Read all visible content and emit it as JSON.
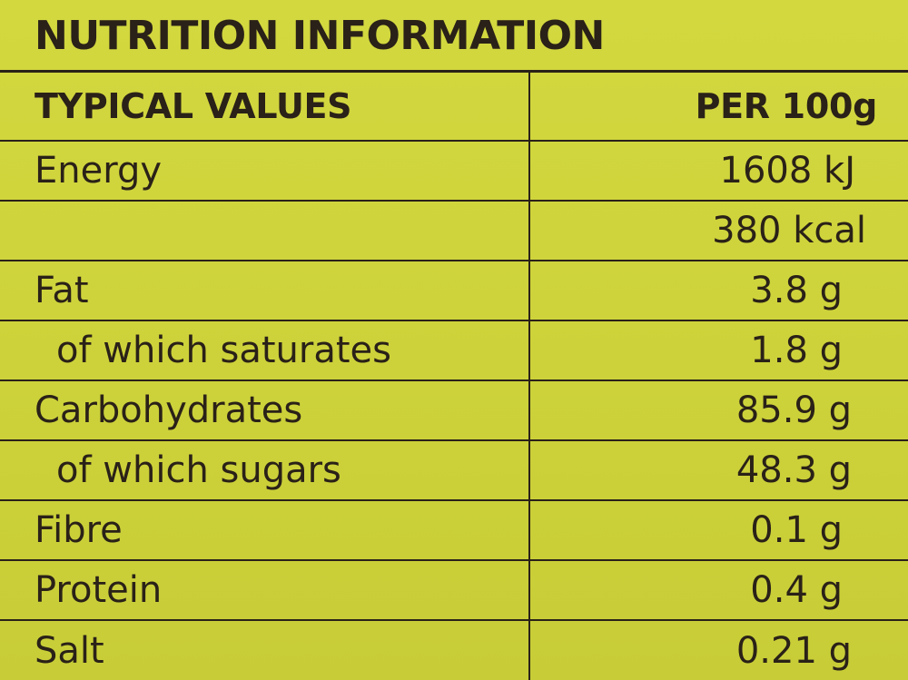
{
  "label": {
    "title": "NUTRITION INFORMATION",
    "header": {
      "typical_values": "TYPICAL VALUES",
      "per_100g": "PER 100g"
    },
    "rows": [
      {
        "name": "Energy",
        "value": "1608 kJ"
      },
      {
        "name": "",
        "value": "380 kcal"
      },
      {
        "name": "Fat",
        "value": "3.8 g"
      },
      {
        "name": "of which saturates",
        "value": "1.8 g"
      },
      {
        "name": "Carbohydrates",
        "value": "85.9 g"
      },
      {
        "name": "of which sugars",
        "value": "48.3 g"
      },
      {
        "name": "Fibre",
        "value": "0.1 g"
      },
      {
        "name": "Protein",
        "value": "0.4 g"
      },
      {
        "name": "Salt",
        "value": "0.21 g"
      }
    ],
    "colors": {
      "background": "#cfd43a",
      "ink": "#2a2118"
    }
  }
}
